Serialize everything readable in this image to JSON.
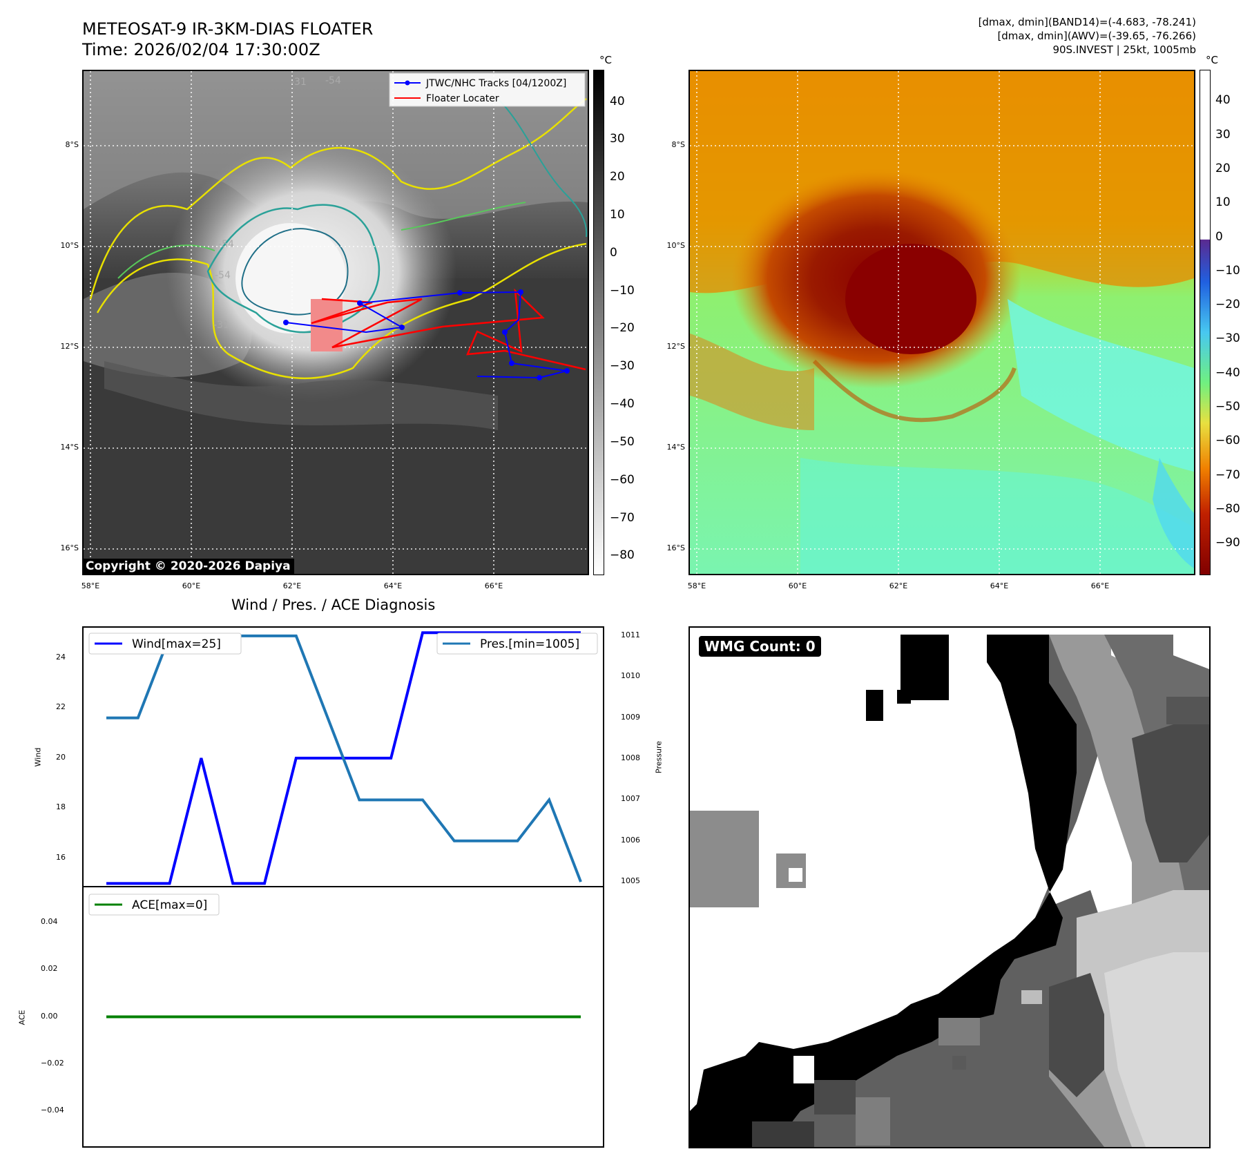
{
  "header": {
    "title_line1": "METEOSAT-9 IR-3KM-DIAS FLOATER",
    "title_line2": "Time: 2026/02/04 17:30:00Z",
    "stats_line1": "[dmax, dmin](BAND14)=(-4.683, -78.241)",
    "stats_line2": "[dmax, dmin](AWV)=(-39.65, -76.266)",
    "stats_line3": "90S.INVEST | 25kt, 1005mb"
  },
  "map": {
    "lat_labels": [
      "8°S",
      "10°S",
      "12°S",
      "14°S",
      "16°S"
    ],
    "lon_labels": [
      "58°E",
      "60°E",
      "62°E",
      "64°E",
      "66°E"
    ],
    "contour_labels": [
      "-31",
      "-54",
      "-54",
      "-31",
      "-54"
    ],
    "legend_tracks": "JTWC/NHC Tracks [04/1200Z]",
    "legend_locater": "Floater Locater",
    "copyright": "Copyright © 2020-2026 Dapiya",
    "track_color": "#0000ff",
    "locater_color": "#ff0000"
  },
  "colorbar_left": {
    "unit": "°C",
    "ticks": [
      "40",
      "30",
      "20",
      "10",
      "0",
      "−10",
      "−20",
      "−30",
      "−40",
      "−50",
      "−60",
      "−70",
      "−80"
    ]
  },
  "colorbar_right": {
    "unit": "°C",
    "ticks": [
      "40",
      "30",
      "20",
      "10",
      "0",
      "−10",
      "−20",
      "−30",
      "−40",
      "−50",
      "−60",
      "−70",
      "−80",
      "−90"
    ]
  },
  "diagnosis": {
    "title": "Wind / Pres. / ACE Diagnosis",
    "wind_legend": "Wind[max=25]",
    "pres_legend": "Pres.[min=1005]",
    "ace_legend": "ACE[max=0]",
    "wind_axis_label": "Wind",
    "pres_axis_label": "Pressure",
    "ace_axis_label": "ACE",
    "wind_ticks": [
      "24",
      "22",
      "20",
      "18",
      "16"
    ],
    "pres_ticks": [
      "1011",
      "1010",
      "1009",
      "1008",
      "1007",
      "1006",
      "1005"
    ],
    "ace_ticks": [
      "0.04",
      "0.02",
      "0.00",
      "−0.02",
      "−0.04"
    ]
  },
  "wmg": {
    "label": "WMG Count: 0"
  },
  "chart_data": {
    "type": "line",
    "title": "Wind / Pres. / ACE Diagnosis",
    "series": [
      {
        "name": "Wind[max=25]",
        "axis": "Wind",
        "color": "#0000ff",
        "values": [
          15,
          15,
          15,
          20,
          15,
          15,
          20,
          20,
          20,
          20,
          25,
          25,
          25,
          25,
          25,
          25
        ]
      },
      {
        "name": "Pres.[min=1005]",
        "axis": "Pressure",
        "color": "#1f77b4",
        "values": [
          1009,
          1009,
          1011,
          1011,
          1011,
          1011,
          1011,
          1009,
          1007,
          1007,
          1007,
          1006,
          1006,
          1006,
          1007,
          1005
        ]
      },
      {
        "name": "ACE[max=0]",
        "axis": "ACE",
        "color": "#008000",
        "values": [
          0,
          0,
          0,
          0,
          0,
          0,
          0,
          0,
          0,
          0,
          0,
          0,
          0,
          0,
          0,
          0
        ]
      }
    ],
    "wind_ylim": [
      14.9,
      25.2
    ],
    "pres_ylim": [
      1004.9,
      1011.2
    ],
    "ace_ylim": [
      -0.055,
      0.055
    ]
  }
}
